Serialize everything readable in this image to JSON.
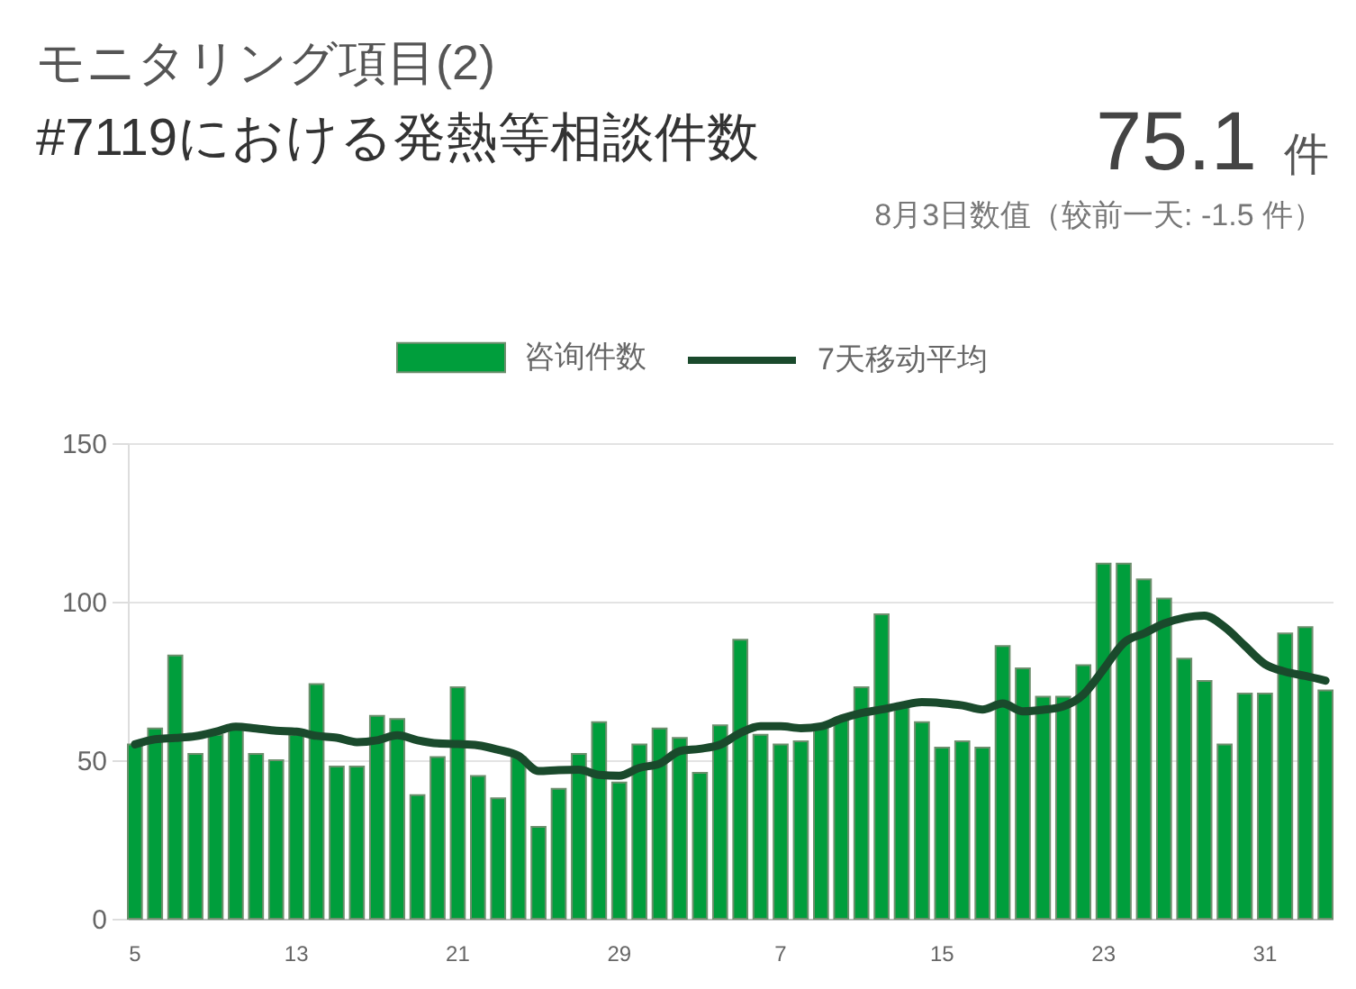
{
  "chart_data": {
    "type": "bar",
    "title": "モニタリング項目(2)",
    "subtitle": "#7119における発熱等相談件数",
    "annotations": [
      "75.1",
      "件",
      "8月3日数值（较前一天: -1.5 件）"
    ],
    "categories": [
      "5",
      null,
      null,
      null,
      null,
      null,
      null,
      null,
      "13",
      null,
      null,
      null,
      null,
      null,
      null,
      null,
      "21",
      null,
      null,
      null,
      null,
      null,
      null,
      null,
      "29",
      null,
      null,
      null,
      null,
      null,
      null,
      null,
      "7",
      null,
      null,
      null,
      null,
      null,
      null,
      null,
      "15",
      null,
      null,
      null,
      null,
      null,
      null,
      null,
      "23",
      null,
      null,
      null,
      null,
      null,
      null,
      null,
      "31",
      null,
      null,
      null
    ],
    "series": [
      {
        "name": "咨询件数",
        "color": "#009e3c",
        "values": [
          55,
          60,
          83,
          52,
          58,
          60,
          52,
          50,
          58,
          74,
          48,
          48,
          64,
          63,
          39,
          51,
          73,
          45,
          38,
          51,
          29,
          41,
          52,
          62,
          43,
          55,
          60,
          57,
          46,
          61,
          88,
          58,
          55,
          56,
          61,
          63,
          73,
          96,
          67,
          62,
          54,
          56,
          54,
          86,
          79,
          70,
          70,
          80,
          112,
          112,
          107,
          101,
          82,
          75,
          55,
          71,
          71,
          90,
          92,
          72
        ]
      },
      {
        "name": "7天移动平均",
        "type": "line",
        "color": "#1a4a2c",
        "values": [
          55.0,
          56.6,
          57.0,
          57.6,
          59.0,
          60.6,
          60.0,
          59.3,
          59.0,
          57.7,
          57.1,
          55.7,
          56.3,
          57.9,
          56.3,
          55.3,
          55.1,
          54.7,
          53.3,
          51.4,
          46.6,
          46.9,
          47.0,
          45.4,
          45.1,
          47.6,
          48.9,
          52.9,
          53.6,
          54.9,
          58.6,
          60.7,
          60.7,
          60.1,
          60.7,
          63.1,
          64.9,
          66.0,
          67.3,
          68.3,
          68.0,
          67.3,
          66.0,
          67.9,
          65.4,
          65.9,
          67.0,
          70.7,
          78.7,
          87.0,
          90.0,
          93.1,
          94.9,
          95.6,
          92.0,
          86.1,
          80.3,
          77.9,
          76.6,
          75.1
        ]
      }
    ],
    "ylim": [
      0,
      150
    ],
    "yticks": [
      0,
      50,
      100,
      150
    ],
    "grid": "y",
    "legend": "top"
  }
}
